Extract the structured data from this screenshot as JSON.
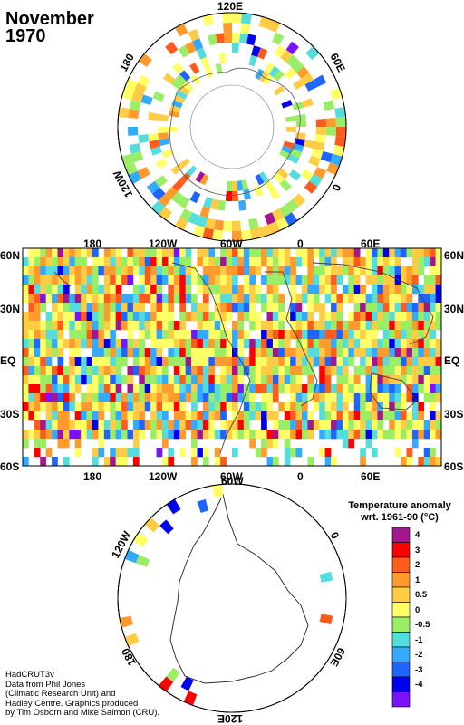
{
  "title": {
    "line1": "November",
    "line2": "1970"
  },
  "north_polar_labels": {
    "top": "120E",
    "right": "60E",
    "bottom_right": "0",
    "left": "180",
    "bottom_left": "120W"
  },
  "map_labels": {
    "top_lons": [
      "180",
      "120W",
      "60W",
      "0",
      "60E"
    ],
    "bottom_lons": [
      "180",
      "120W",
      "60W",
      "0",
      "60E"
    ],
    "left_lats": [
      "60N",
      "30N",
      "EQ",
      "30S",
      "60S"
    ],
    "right_lats": [
      "60N",
      "30N",
      "EQ",
      "30S",
      "60S"
    ]
  },
  "south_polar_labels": {
    "top": "60W",
    "top_right": "0",
    "right": "60E",
    "bottom": "120E",
    "bottom_left": "180",
    "left": "120W"
  },
  "legend": {
    "title_line1": "Temperature anomaly",
    "title_line2": "wrt. 1961-90  (°C)",
    "bins": [
      {
        "label": "4",
        "color": "#a2178e"
      },
      {
        "label": "3",
        "color": "#ff0000"
      },
      {
        "label": "2",
        "color": "#ff5b1d"
      },
      {
        "label": "1",
        "color": "#ff9a2d"
      },
      {
        "label": "0.5",
        "color": "#ffcc44"
      },
      {
        "label": "0",
        "color": "#ffff66"
      },
      {
        "label": "-0.5",
        "color": "#99ee66"
      },
      {
        "label": "-1",
        "color": "#55dddd"
      },
      {
        "label": "-2",
        "color": "#33aaff"
      },
      {
        "label": "-3",
        "color": "#1e64ff"
      },
      {
        "label": "-4",
        "color": "#0000ee"
      },
      {
        "label": "",
        "color": "#7a11ff"
      }
    ]
  },
  "credits": [
    "HadCRUT3v",
    "Data from Phil Jones",
    "(Climatic Research Unit) and",
    "Hadley Centre.  Graphics produced",
    "by Tim Osborn and Mike Salmon (CRU)."
  ]
}
